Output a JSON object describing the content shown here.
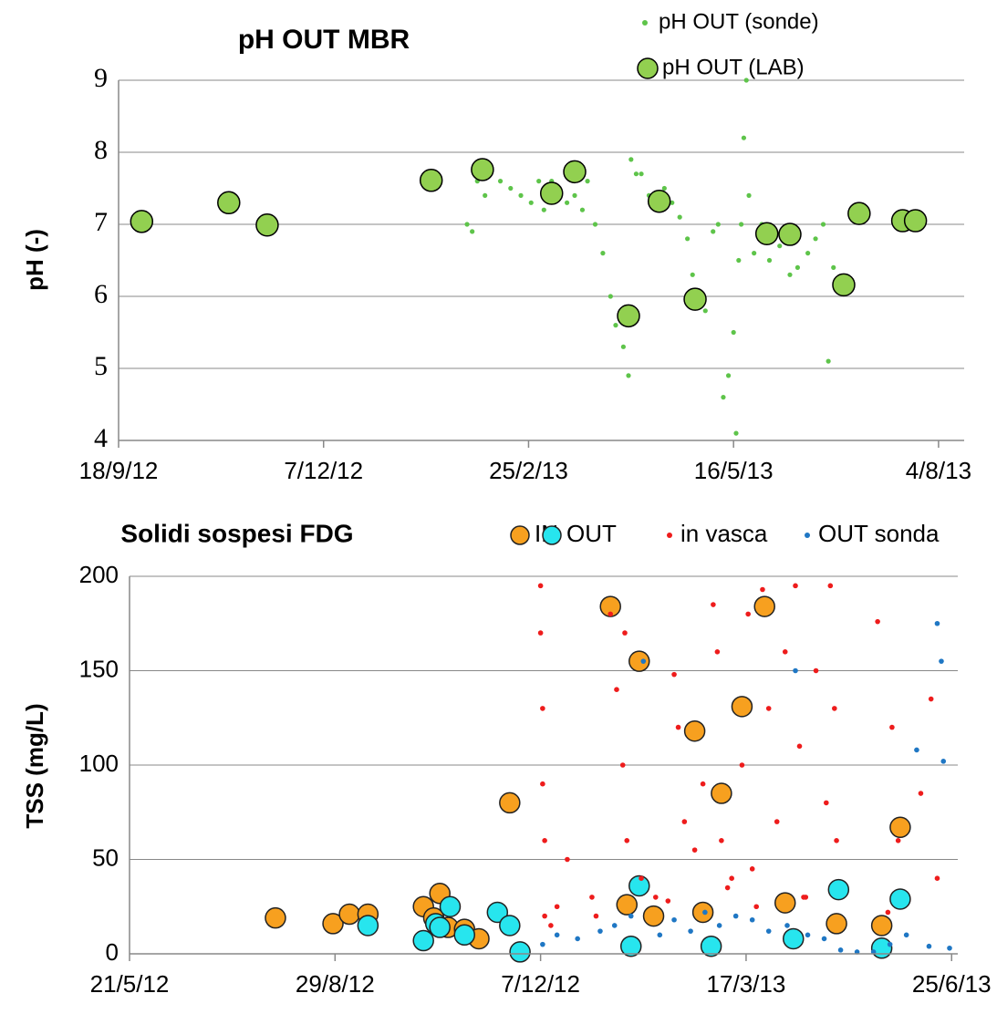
{
  "chart_data": [
    {
      "type": "scatter",
      "title": "pH OUT MBR",
      "y_label": "pH (-)",
      "xlim": [
        "18/9/12",
        "14/8/13"
      ],
      "xticks": [
        "18/9/12",
        "7/12/12",
        "25/2/13",
        "16/5/13",
        "4/8/13"
      ],
      "ylim": [
        4,
        9
      ],
      "yticks": [
        4,
        5,
        6,
        7,
        8,
        9
      ],
      "grid": true,
      "legend": "top-right",
      "series": [
        {
          "name": "pH OUT (sonde)",
          "color": "#5ec44a",
          "x": [
            "1/2/13",
            "3/2/13",
            "5/2/13",
            "8/2/13",
            "10/2/13",
            "14/2/13",
            "18/2/13",
            "22/2/13",
            "26/2/13",
            "1/3/13",
            "3/3/13",
            "6/3/13",
            "9/3/13",
            "12/3/13",
            "15/3/13",
            "18/3/13",
            "20/3/13",
            "23/3/13",
            "26/3/13",
            "29/3/13",
            "31/3/13",
            "3/4/13",
            "5/4/13",
            "6/4/13",
            "8/4/13",
            "10/4/13",
            "13/4/13",
            "16/4/13",
            "19/4/13",
            "22/4/13",
            "25/4/13",
            "28/4/13",
            "30/4/13",
            "2/5/13",
            "5/5/13",
            "8/5/13",
            "10/5/13",
            "12/5/13",
            "14/5/13",
            "16/5/13",
            "17/5/13",
            "18/5/13",
            "19/5/13",
            "20/5/13",
            "21/5/13",
            "22/5/13",
            "24/5/13",
            "27/5/13",
            "30/5/13",
            "3/6/13",
            "7/6/13",
            "10/6/13",
            "14/6/13",
            "17/6/13",
            "20/6/13",
            "22/6/13",
            "24/6/13",
            "26/6/13"
          ],
          "values": [
            7.0,
            6.9,
            7.6,
            7.4,
            7.7,
            7.6,
            7.5,
            7.4,
            7.3,
            7.6,
            7.2,
            7.6,
            7.5,
            7.3,
            7.4,
            7.2,
            7.6,
            7.0,
            6.6,
            6.0,
            5.6,
            5.3,
            4.9,
            7.9,
            7.7,
            7.7,
            7.4,
            7.3,
            7.5,
            7.3,
            7.1,
            6.8,
            6.3,
            6.0,
            5.8,
            6.9,
            7.0,
            4.6,
            4.9,
            5.5,
            4.1,
            6.5,
            7.0,
            8.2,
            9.0,
            7.4,
            6.6,
            7.0,
            6.5,
            6.7,
            6.3,
            6.4,
            6.6,
            6.8,
            7.0,
            5.1,
            6.4,
            6.2
          ]
        },
        {
          "name": "pH OUT (LAB)",
          "color": "#92d050",
          "x": [
            "27/9/12",
            "31/10/12",
            "15/11/12",
            "18/1/13",
            "7/2/13",
            "6/3/13",
            "15/3/13",
            "5/4/13",
            "17/4/13",
            "1/5/13",
            "29/5/13",
            "7/6/13",
            "28/6/13",
            "4/7/13",
            "21/7/13",
            "26/7/13"
          ],
          "values": [
            7.04,
            7.3,
            6.99,
            7.61,
            7.76,
            7.43,
            7.73,
            5.73,
            7.32,
            5.96,
            6.87,
            6.86,
            6.16,
            7.15,
            7.05,
            7.05
          ]
        }
      ]
    },
    {
      "type": "scatter",
      "title": "Solidi sospesi FDG",
      "y_label": "TSS (mg/L)",
      "xlim": [
        "21/5/12",
        "28/6/13"
      ],
      "xticks": [
        "21/5/12",
        "29/8/12",
        "7/12/12",
        "17/3/13",
        "25/6/13"
      ],
      "ylim": [
        0,
        200
      ],
      "yticks": [
        0,
        50,
        100,
        150,
        200
      ],
      "grid": true,
      "legend": "top",
      "series": [
        {
          "name": "IN",
          "color": "#f7a01f",
          "x": [
            "31/7/12",
            "28/8/12",
            "5/9/12",
            "14/9/12",
            "11/10/12",
            "16/10/12",
            "19/10/12",
            "23/10/12",
            "31/10/12",
            "7/11/12",
            "22/11/12",
            "10/1/13",
            "18/1/13",
            "24/1/13",
            "31/1/13",
            "20/2/13",
            "24/2/13",
            "5/3/13",
            "15/3/13",
            "26/3/13",
            "5/4/13",
            "30/4/13",
            "22/5/13",
            "31/5/13"
          ],
          "values": [
            19,
            16,
            21,
            21,
            25,
            19,
            32,
            14,
            13,
            8,
            80,
            184,
            26,
            155,
            20,
            118,
            22,
            85,
            131,
            184,
            27,
            16,
            15,
            67
          ]
        },
        {
          "name": "OUT",
          "color": "#27e5ee",
          "x": [
            "14/9/12",
            "11/10/12",
            "17/10/12",
            "19/10/12",
            "24/10/12",
            "31/10/12",
            "16/11/12",
            "22/11/12",
            "27/11/12",
            "20/1/13",
            "24/1/13",
            "28/2/13",
            "9/4/13",
            "1/5/13",
            "22/5/13",
            "31/5/13"
          ],
          "values": [
            15,
            7,
            16,
            14,
            25,
            10,
            22,
            15,
            1,
            4,
            36,
            4,
            8,
            34,
            3,
            29
          ]
        },
        {
          "name": "in vasca",
          "color": "#ee1c1c",
          "x": [
            "7/12/12",
            "7/12/12",
            "8/12/12",
            "8/12/12",
            "9/12/12",
            "9/12/12",
            "15/12/12",
            "20/12/12",
            "1/1/13",
            "10/1/13",
            "13/1/13",
            "16/1/13",
            "17/1/13",
            "18/1/13",
            "25/1/13",
            "1/2/13",
            "10/2/13",
            "12/2/13",
            "15/2/13",
            "20/2/13",
            "24/2/13",
            "1/3/13",
            "3/3/13",
            "5/3/13",
            "10/3/13",
            "15/3/13",
            "18/3/13",
            "20/3/13",
            "25/3/13",
            "28/3/13",
            "1/4/13",
            "5/4/13",
            "10/4/13",
            "12/4/13",
            "15/4/13",
            "20/4/13",
            "25/4/13",
            "27/4/13",
            "29/4/13",
            "30/4/13",
            "20/5/13",
            "27/5/13",
            "30/5/13",
            "10/6/13",
            "15/6/13",
            "18/6/13",
            "12/12/12",
            "3/1/13",
            "7/2/13",
            "8/3/13",
            "22/3/13",
            "14/4/13",
            "25/5/13"
          ],
          "values": [
            195,
            170,
            130,
            90,
            60,
            20,
            25,
            50,
            30,
            180,
            140,
            100,
            170,
            60,
            40,
            30,
            148,
            120,
            70,
            55,
            90,
            185,
            160,
            60,
            40,
            100,
            180,
            45,
            193,
            130,
            70,
            160,
            195,
            110,
            30,
            150,
            80,
            195,
            130,
            60,
            176,
            120,
            60,
            85,
            135,
            40,
            15,
            20,
            28,
            35,
            25,
            30,
            22
          ]
        },
        {
          "name": "OUT sonda",
          "color": "#1f77c4",
          "x": [
            "8/12/12",
            "15/12/12",
            "25/12/12",
            "5/1/13",
            "12/1/13",
            "20/1/13",
            "26/1/13",
            "3/2/13",
            "10/2/13",
            "18/2/13",
            "25/2/13",
            "4/3/13",
            "12/3/13",
            "20/3/13",
            "28/3/13",
            "6/4/13",
            "10/4/13",
            "16/4/13",
            "24/4/13",
            "2/5/13",
            "10/5/13",
            "18/5/13",
            "26/5/13",
            "3/6/13",
            "8/6/13",
            "14/6/13",
            "18/6/13",
            "20/6/13",
            "21/6/13",
            "24/6/13"
          ],
          "values": [
            5,
            10,
            8,
            12,
            15,
            20,
            155,
            10,
            18,
            12,
            22,
            15,
            20,
            18,
            12,
            15,
            150,
            10,
            8,
            2,
            1,
            1,
            5,
            10,
            108,
            4,
            175,
            155,
            102,
            3
          ]
        }
      ]
    }
  ]
}
